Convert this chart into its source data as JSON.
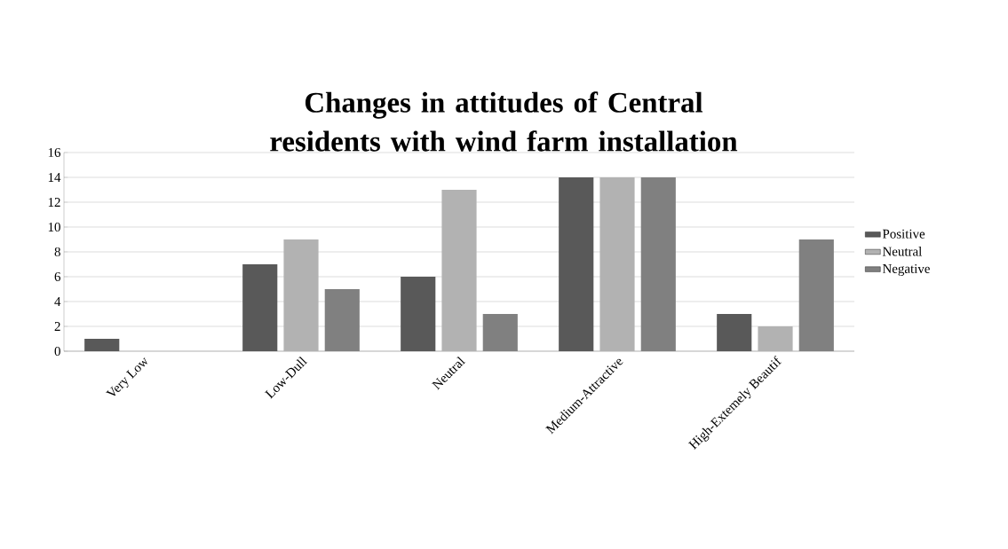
{
  "chart_data": {
    "type": "bar",
    "title": "Changes in attitudes of Central residents with wind farm installation",
    "categories": [
      "Very Low",
      "Low-Dull",
      "Neutral",
      "Medium-Attractive",
      "High-Extemely Beautif"
    ],
    "series": [
      {
        "name": "Positive",
        "color": "#595959",
        "values": [
          1,
          7,
          6,
          14,
          3
        ]
      },
      {
        "name": "Neutral",
        "color": "#b2b2b2",
        "values": [
          0,
          9,
          13,
          14,
          2
        ]
      },
      {
        "name": "Negative",
        "color": "#808080",
        "values": [
          0,
          5,
          3,
          14,
          9
        ]
      }
    ],
    "ylim": [
      0,
      16
    ],
    "yticks": [
      0,
      2,
      4,
      6,
      8,
      10,
      12,
      14,
      16
    ],
    "grid": "y",
    "legend": "right"
  }
}
